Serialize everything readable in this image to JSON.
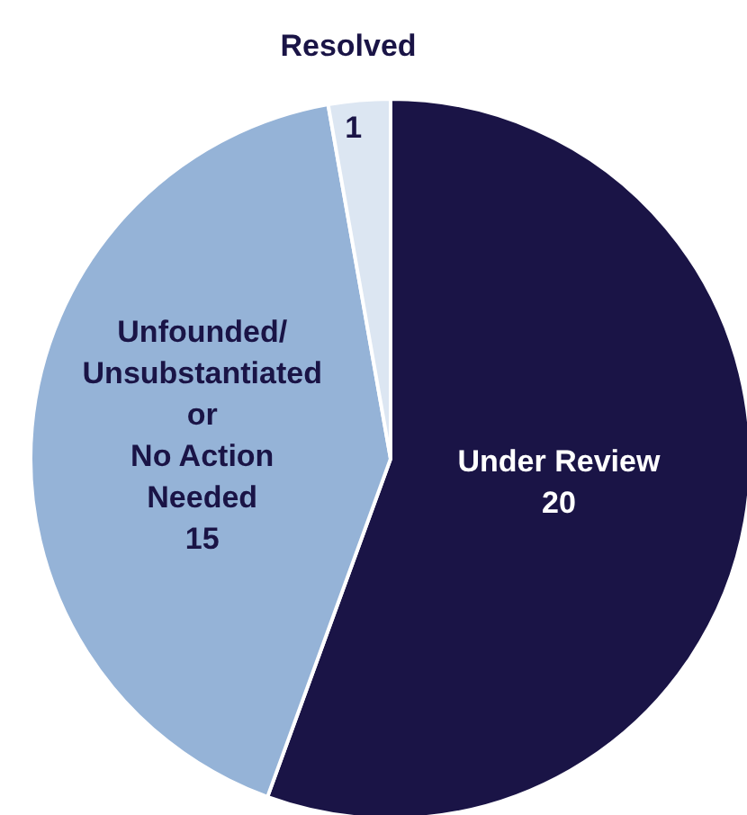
{
  "chart_data": {
    "type": "pie",
    "categories": [
      "Under Review",
      "Unfounded/\nUnsubstantiated\nor\nNo Action\nNeeded",
      "Resolved"
    ],
    "values": [
      20,
      15,
      1
    ],
    "colors": [
      "#1a1446",
      "#95b3d7",
      "#dce6f2"
    ],
    "data_labels": true,
    "legend": false
  }
}
